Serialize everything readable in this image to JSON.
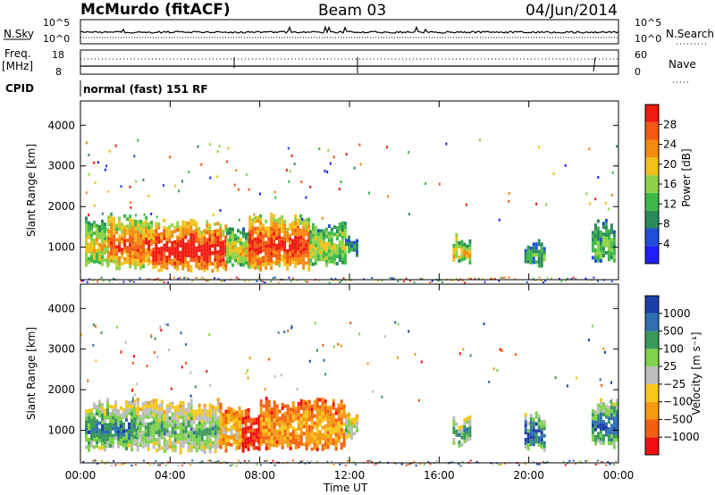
{
  "header": {
    "station": "McMurdo (fitACF)",
    "beam": "Beam 03",
    "date": "04/Jun/2014"
  },
  "summary": {
    "nsky_label": "N.Sky",
    "nsky_ticks": [
      "10^5",
      "10^0"
    ],
    "nsearch_label": "N.Search",
    "nsearch_ticks": [
      "10^5",
      "10^0"
    ],
    "freq_label_1": "Freq.",
    "freq_label_2": "[MHz]",
    "freq_ticks": [
      "18",
      "8"
    ],
    "nave_label": "Nave",
    "nave_ticks": [
      "60",
      "0"
    ],
    "cpid_label": "CPID",
    "cpid_text": "normal (fast) 151 RF"
  },
  "colors": {
    "power": [
      "#1f1fff",
      "#1f4fd8",
      "#2a8a5a",
      "#3cb84a",
      "#8fd24a",
      "#f2c21a",
      "#f58a10",
      "#f55a10",
      "#f01a10"
    ],
    "velocity": [
      "#1a3fa8",
      "#2e6fb0",
      "#3a9a5a",
      "#7fd24a",
      "#bdbdbd",
      "#f5c81a",
      "#f59a10",
      "#f56010",
      "#f01010"
    ]
  },
  "chart_data": [
    {
      "type": "heatmap",
      "name": "power",
      "xlabel": "Time UT",
      "ylabel": "Slant Range [km]",
      "xlim": [
        0,
        24
      ],
      "ylim": [
        200,
        4600
      ],
      "x_ticks": [
        "00:00",
        "04:00",
        "08:00",
        "12:00",
        "16:00",
        "20:00",
        "00:00"
      ],
      "y_ticks": [
        1000,
        2000,
        3000,
        4000
      ],
      "colorbar": {
        "label": "Power [dB]",
        "ticks": [
          4,
          8,
          12,
          16,
          20,
          24,
          28
        ],
        "range": [
          0,
          30
        ]
      },
      "regions": [
        {
          "t0": 0.2,
          "t1": 1.2,
          "r0": 600,
          "r1": 1600,
          "level": 0.55
        },
        {
          "t0": 1.2,
          "t1": 3.2,
          "r0": 550,
          "r1": 1700,
          "level": 0.75
        },
        {
          "t0": 3.2,
          "t1": 6.5,
          "r0": 500,
          "r1": 1550,
          "level": 0.92
        },
        {
          "t0": 6.5,
          "t1": 7.5,
          "r0": 600,
          "r1": 1400,
          "level": 0.55
        },
        {
          "t0": 7.5,
          "t1": 10.2,
          "r0": 550,
          "r1": 1700,
          "level": 0.85
        },
        {
          "t0": 10.2,
          "t1": 11.8,
          "r0": 650,
          "r1": 1500,
          "level": 0.5
        },
        {
          "t0": 11.8,
          "t1": 12.3,
          "r0": 900,
          "r1": 1300,
          "level": 0.3
        },
        {
          "t0": 16.6,
          "t1": 17.4,
          "r0": 700,
          "r1": 1200,
          "level": 0.6
        },
        {
          "t0": 19.8,
          "t1": 20.7,
          "r0": 600,
          "r1": 1050,
          "level": 0.35
        },
        {
          "t0": 22.8,
          "t1": 23.8,
          "r0": 700,
          "r1": 1550,
          "level": 0.4
        }
      ]
    },
    {
      "type": "heatmap",
      "name": "velocity",
      "xlabel": "Time UT",
      "ylabel": "Slant Range [km]",
      "xlim": [
        0,
        24
      ],
      "ylim": [
        200,
        4600
      ],
      "x_ticks": [
        "00:00",
        "04:00",
        "08:00",
        "12:00",
        "16:00",
        "20:00",
        "00:00"
      ],
      "y_ticks": [
        1000,
        2000,
        3000,
        4000
      ],
      "colorbar": {
        "label": "Velocity [m s⁻¹]",
        "ticks": [
          "1000",
          "500",
          "100",
          "25",
          "−25",
          "−100",
          "−500",
          "−1000"
        ]
      },
      "regions": [
        {
          "t0": 0.2,
          "t1": 2.5,
          "r0": 600,
          "r1": 1650,
          "level": 0.72
        },
        {
          "t0": 2.5,
          "t1": 6.2,
          "r0": 550,
          "r1": 1650,
          "level": 0.6
        },
        {
          "t0": 6.2,
          "t1": 7.2,
          "r0": 600,
          "r1": 1550,
          "level": 0.35
        },
        {
          "t0": 7.2,
          "t1": 8.0,
          "r0": 600,
          "r1": 1400,
          "level": 0.08
        },
        {
          "t0": 8.0,
          "t1": 11.8,
          "r0": 600,
          "r1": 1700,
          "level": 0.28
        },
        {
          "t0": 11.8,
          "t1": 12.3,
          "r0": 900,
          "r1": 1350,
          "level": 0.55
        },
        {
          "t0": 16.6,
          "t1": 17.4,
          "r0": 700,
          "r1": 1250,
          "level": 0.7
        },
        {
          "t0": 19.8,
          "t1": 20.7,
          "r0": 600,
          "r1": 1350,
          "level": 0.85
        },
        {
          "t0": 22.8,
          "t1": 23.9,
          "r0": 700,
          "r1": 1650,
          "level": 0.8
        }
      ]
    }
  ]
}
